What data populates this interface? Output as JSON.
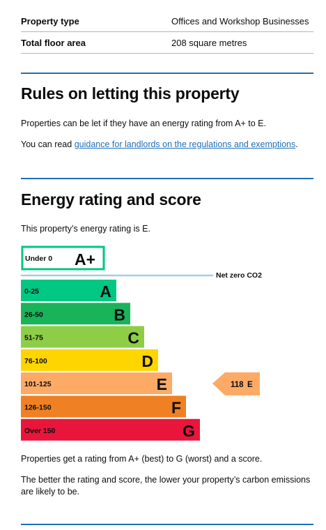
{
  "summary": {
    "property_type_label": "Property type",
    "property_type_value": "Offices and Workshop Businesses",
    "floor_area_label": "Total floor area",
    "floor_area_value": "208 square metres"
  },
  "rules": {
    "heading": "Rules on letting this property",
    "para1": "Properties can be let if they have an energy rating from A+ to E.",
    "para2_prefix": "You can read ",
    "para2_link": "guidance for landlords on the regulations and exemptions",
    "para2_suffix": "."
  },
  "energy": {
    "heading": "Energy rating and score",
    "intro": "This property’s energy rating is E.",
    "net_zero_label": "Net zero CO2",
    "current_score": "118",
    "current_letter": "E",
    "footer1": "Properties get a rating from A+ (best) to G (worst) and a score.",
    "footer2_line1": "The better the rating and score, the lower your property’s carbon emissions",
    "footer2_line2": "are likely to be."
  },
  "chart_data": {
    "type": "bar",
    "categories": [
      "A+",
      "A",
      "B",
      "C",
      "D",
      "E",
      "F",
      "G"
    ],
    "bands": [
      {
        "range": "Under 0",
        "letter": "A+",
        "color": "#ffffff",
        "border": "#00c781"
      },
      {
        "range": "0-25",
        "letter": "A",
        "color": "#00c781"
      },
      {
        "range": "26-50",
        "letter": "B",
        "color": "#19b459"
      },
      {
        "range": "51-75",
        "letter": "C",
        "color": "#8dce46"
      },
      {
        "range": "76-100",
        "letter": "D",
        "color": "#ffd500"
      },
      {
        "range": "101-125",
        "letter": "E",
        "color": "#fcaa65"
      },
      {
        "range": "126-150",
        "letter": "F",
        "color": "#ef8023"
      },
      {
        "range": "Over 150",
        "letter": "G",
        "color": "#e9153b"
      }
    ],
    "current": {
      "score": 118,
      "letter": "E",
      "color": "#fcaa65"
    },
    "net_zero_color": "#9fd0e0"
  }
}
